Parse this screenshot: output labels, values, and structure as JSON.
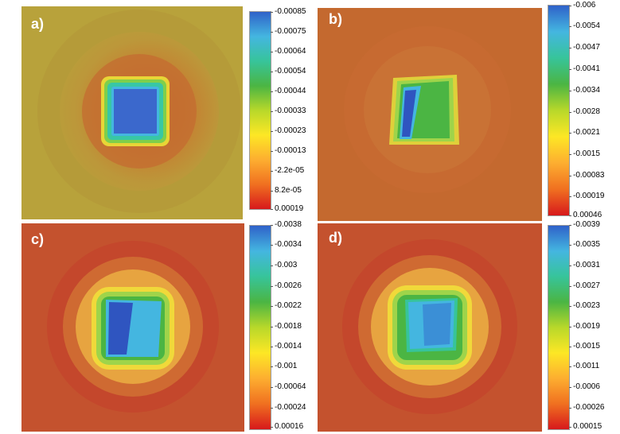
{
  "colormap": [
    "#d7191c",
    "#f07020",
    "#fdae30",
    "#fde725",
    "#b8d82a",
    "#4bb543",
    "#37c49a",
    "#44b6e0",
    "#2f62c9"
  ],
  "panels": [
    {
      "label": "a)",
      "background": "#b7a23a",
      "ticks": [
        "-0.00085",
        "-0.00075",
        "-0.00064",
        "-0.00054",
        "-0.00044",
        "-0.00033",
        "-0.00023",
        "-0.00013",
        "-2.2e-05",
        "8.2e-05",
        "0.00019"
      ]
    },
    {
      "label": "b)",
      "background": "#c46a30",
      "ticks": [
        "-0.006",
        "-0.0054",
        "-0.0047",
        "-0.0041",
        "-0.0034",
        "-0.0028",
        "-0.0021",
        "-0.0015",
        "-0.00083",
        "-0.00019",
        "0.00046"
      ]
    },
    {
      "label": "c)",
      "background": "#c4522e",
      "ticks": [
        "-0.0038",
        "-0.0034",
        "-0.003",
        "-0.0026",
        "-0.0022",
        "-0.0018",
        "-0.0014",
        "-0.001",
        "-0.00064",
        "-0.00024",
        "0.00016"
      ]
    },
    {
      "label": "d)",
      "background": "#c4522e",
      "ticks": [
        "-0.0039",
        "-0.0035",
        "-0.0031",
        "-0.0027",
        "-0.0023",
        "-0.0019",
        "-0.0015",
        "-0.0011",
        "-0.0006",
        "-0.00026",
        "0.00015"
      ]
    }
  ]
}
